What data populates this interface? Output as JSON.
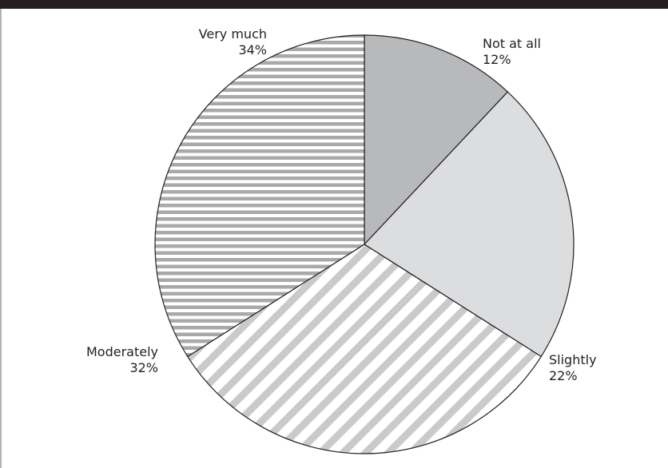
{
  "chart_data": {
    "type": "pie",
    "title": "",
    "start_angle_deg": 0,
    "direction": "clockwise",
    "slices": [
      {
        "name": "Not at all",
        "value": 12,
        "label": "12%",
        "fill": "#b8b9bb",
        "pattern": "solid"
      },
      {
        "name": "Slightly",
        "value": 22,
        "label": "22%",
        "fill": "#dcdddf",
        "pattern": "solid"
      },
      {
        "name": "Moderately",
        "value": 32,
        "label": "32%",
        "fill": "#c9cacc",
        "pattern": "diagonal-stripes"
      },
      {
        "name": "Very much",
        "value": 34,
        "label": "34%",
        "fill": "#a8a9ab",
        "pattern": "horizontal-stripes"
      }
    ]
  }
}
